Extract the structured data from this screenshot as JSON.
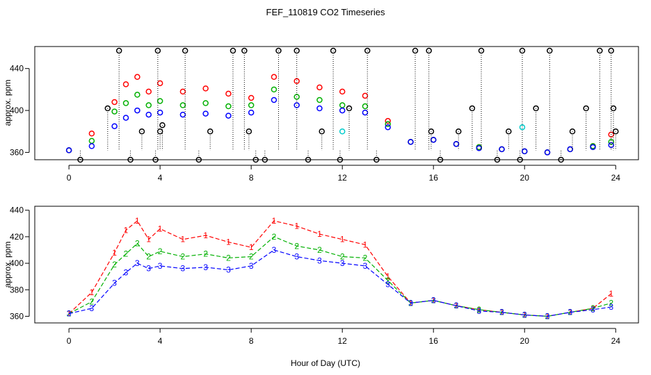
{
  "figure": {
    "title": "FEF_110819  CO2 Timeseries",
    "xlabel": "Hour of Day (UTC)"
  },
  "chart_data": [
    {
      "type": "scatter",
      "title": "FEF_110819  CO2 Timeseries",
      "xlabel": "",
      "ylabel": "approx. ppm",
      "xlim": [
        -1.5,
        25
      ],
      "ylim": [
        353,
        461
      ],
      "xticks": [
        "0",
        "4",
        "8",
        "12",
        "16",
        "20",
        "24"
      ],
      "yticks": [
        "360",
        "400",
        "440"
      ],
      "grid": false,
      "series": [
        {
          "color": "#ff0000",
          "x": [
            0,
            1,
            2,
            2.5,
            3,
            3.5,
            4,
            5,
            6,
            7,
            8,
            9,
            10,
            11,
            12,
            13,
            14,
            15,
            16,
            17,
            18,
            19,
            20,
            21,
            22,
            23,
            23.8
          ],
          "y": [
            362,
            378,
            408,
            425,
            432,
            418,
            426,
            418,
            421,
            416,
            412,
            432,
            428,
            422,
            418,
            414,
            390,
            370,
            372,
            368,
            365,
            363,
            361,
            360,
            363,
            366,
            377
          ]
        },
        {
          "color": "#00b000",
          "x": [
            0,
            1,
            2,
            2.5,
            3,
            3.5,
            4,
            5,
            6,
            7,
            8,
            9,
            10,
            11,
            12,
            13,
            14,
            15,
            16,
            17,
            18,
            19,
            20,
            21,
            22,
            23,
            23.8
          ],
          "y": [
            362,
            371,
            399,
            407,
            415,
            405,
            409,
            405,
            407,
            404,
            405,
            420,
            413,
            410,
            405,
            404,
            387,
            370,
            372,
            368,
            365,
            363,
            361,
            360,
            363,
            366,
            370
          ]
        },
        {
          "color": "#0000ff",
          "x": [
            0,
            1,
            2,
            2.5,
            3,
            3.5,
            4,
            5,
            6,
            7,
            8,
            9,
            10,
            11,
            12,
            13,
            14,
            15,
            16,
            17,
            18,
            19,
            20,
            21,
            22,
            23,
            23.8
          ],
          "y": [
            362,
            366,
            385,
            393,
            400,
            396,
            398,
            396,
            397,
            395,
            398,
            410,
            405,
            402,
            400,
            398,
            384,
            370,
            372,
            368,
            364,
            363,
            361,
            360,
            363,
            365,
            367
          ]
        },
        {
          "color": "#000000",
          "x": [
            0.5,
            1.7,
            2.2,
            2.7,
            3.2,
            3.8,
            3.9,
            4.0,
            4.1,
            5.1,
            5.7,
            6.2,
            7.2,
            7.7,
            7.9,
            8.2,
            8.6,
            9.2,
            10.0,
            10.5,
            11.1,
            11.6,
            11.9,
            12.3,
            13.1,
            13.5,
            15.2,
            15.8,
            15.9,
            16.3,
            17.1,
            17.7,
            18.1,
            18.8,
            19.3,
            19.8,
            19.9,
            20.5,
            21.1,
            21.6,
            22.1,
            22.7,
            23.3,
            23.8,
            23.9,
            24.0
          ],
          "y": [
            353,
            402,
            457,
            353,
            380,
            353,
            457,
            380,
            386,
            457,
            353,
            380,
            457,
            457,
            380,
            353,
            353,
            457,
            457,
            353,
            380,
            457,
            353,
            402,
            457,
            353,
            457,
            457,
            380,
            353,
            380,
            402,
            457,
            353,
            380,
            353,
            457,
            402,
            457,
            353,
            380,
            402,
            457,
            457,
            402,
            380
          ]
        },
        {
          "color": "#00cccc",
          "x": [
            12.0,
            19.9
          ],
          "y": [
            380,
            384
          ]
        }
      ]
    },
    {
      "type": "scatter",
      "title": "",
      "xlabel": "Hour of Day (UTC)",
      "ylabel": "approx. ppm",
      "xlim": [
        -1.5,
        25
      ],
      "ylim": [
        355,
        443
      ],
      "xticks": [
        "0",
        "4",
        "8",
        "12",
        "16",
        "20",
        "24"
      ],
      "yticks": [
        "360",
        "380",
        "400",
        "420",
        "440"
      ],
      "grid": false,
      "series": [
        {
          "name": "1",
          "color": "#ff0000",
          "x": [
            0,
            1,
            2,
            2.5,
            3,
            3.5,
            4,
            5,
            6,
            7,
            8,
            9,
            10,
            11,
            12,
            13,
            14,
            15,
            16,
            17,
            18,
            19,
            20,
            21,
            22,
            23,
            23.8
          ],
          "y": [
            362,
            378,
            408,
            425,
            432,
            418,
            426,
            418,
            421,
            416,
            412,
            432,
            428,
            422,
            418,
            414,
            390,
            370,
            372,
            368,
            365,
            363,
            361,
            360,
            363,
            366,
            377
          ]
        },
        {
          "name": "2",
          "color": "#00b000",
          "x": [
            0,
            1,
            2,
            2.5,
            3,
            3.5,
            4,
            5,
            6,
            7,
            8,
            9,
            10,
            11,
            12,
            13,
            14,
            15,
            16,
            17,
            18,
            19,
            20,
            21,
            22,
            23,
            23.8
          ],
          "y": [
            362,
            371,
            399,
            407,
            415,
            405,
            409,
            405,
            407,
            404,
            405,
            420,
            413,
            410,
            405,
            404,
            387,
            370,
            372,
            368,
            365,
            363,
            361,
            360,
            363,
            366,
            370
          ]
        },
        {
          "name": "3",
          "color": "#0000ff",
          "x": [
            0,
            1,
            2,
            2.5,
            3,
            3.5,
            4,
            5,
            6,
            7,
            8,
            9,
            10,
            11,
            12,
            13,
            14,
            15,
            16,
            17,
            18,
            19,
            20,
            21,
            22,
            23,
            23.8
          ],
          "y": [
            362,
            366,
            385,
            393,
            400,
            396,
            398,
            396,
            397,
            395,
            398,
            410,
            405,
            402,
            400,
            398,
            384,
            370,
            372,
            368,
            364,
            363,
            361,
            360,
            363,
            365,
            367
          ]
        }
      ]
    }
  ]
}
